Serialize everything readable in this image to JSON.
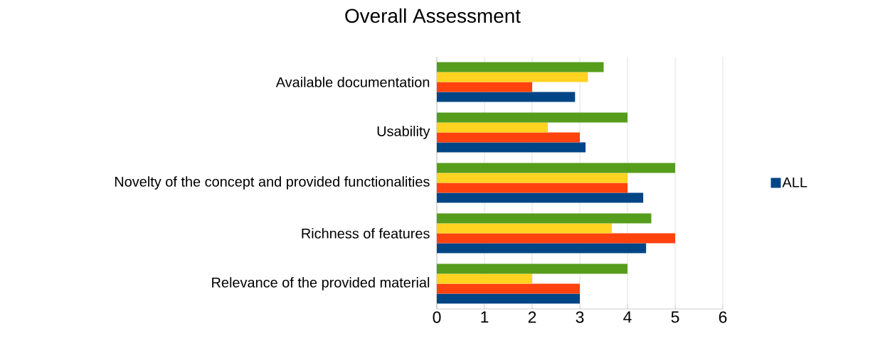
{
  "chart_data": {
    "type": "bar",
    "orientation": "horizontal",
    "title": "Overall Assessment",
    "categories": [
      "Available documentation",
      "Usability",
      "Novelty of the concept and provided functionalities",
      "Richness of features",
      "Relevance of the provided material"
    ],
    "series": [
      {
        "name": "ALL",
        "color": "#004586",
        "values": [
          2.9,
          3.12,
          4.33,
          4.39,
          3
        ]
      },
      {
        "color": "#ff420e",
        "values": [
          2,
          3,
          4,
          5,
          3
        ]
      },
      {
        "color": "#ffd320",
        "values": [
          3.17,
          2.33,
          4,
          3.67,
          2
        ]
      },
      {
        "color": "#579d1c",
        "values": [
          3.5,
          4,
          5,
          4.5,
          4
        ]
      }
    ],
    "xlim": [
      0,
      6
    ],
    "xticks": [
      0,
      1,
      2,
      3,
      4,
      5,
      6
    ],
    "grid": "x",
    "legend": "right"
  }
}
